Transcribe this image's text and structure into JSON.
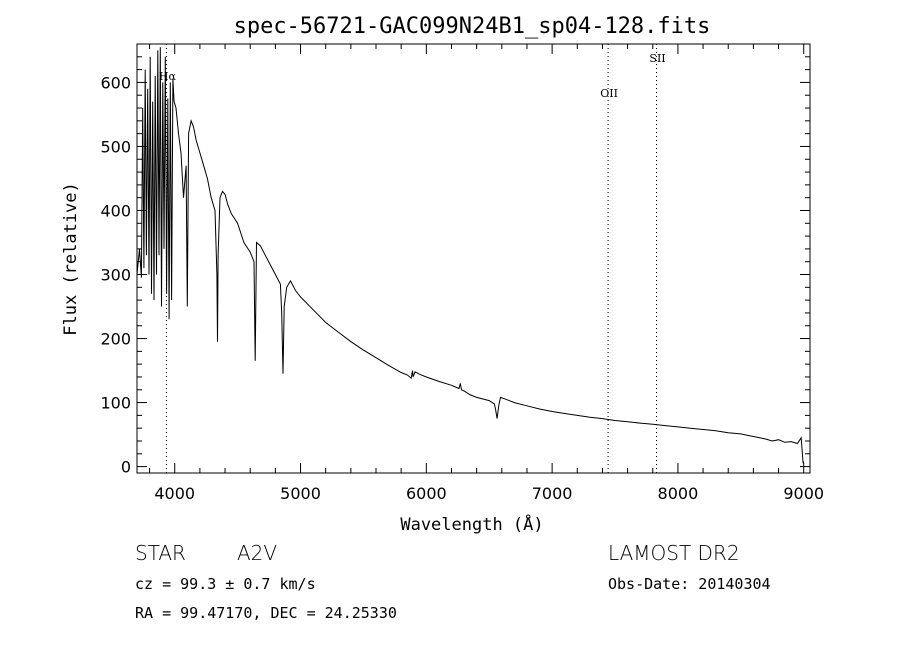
{
  "chart_data": {
    "type": "line",
    "title": "spec-56721-GAC099N24B1_sp04-128.fits",
    "xlabel": "Wavelength (Å)",
    "ylabel": "Flux (relative)",
    "xlim": [
      3700,
      9050
    ],
    "ylim": [
      -10,
      660
    ],
    "xticks": [
      4000,
      5000,
      6000,
      7000,
      8000,
      9000
    ],
    "yticks": [
      0,
      100,
      200,
      300,
      400,
      500,
      600
    ],
    "grid": false,
    "series": [
      {
        "x": [
          3700,
          3720,
          3735,
          3745,
          3755,
          3765,
          3775,
          3785,
          3795,
          3805,
          3815,
          3825,
          3835,
          3845,
          3855,
          3865,
          3875,
          3885,
          3895,
          3905,
          3915,
          3925,
          3935,
          3945,
          3955,
          3965,
          3975,
          3985,
          3995,
          4010,
          4030,
          4050,
          4070,
          4090,
          4100,
          4110,
          4130,
          4150,
          4170,
          4200,
          4230,
          4260,
          4290,
          4320,
          4335,
          4340,
          4345,
          4360,
          4380,
          4400,
          4420,
          4450,
          4500,
          4550,
          4600,
          4630,
          4640,
          4650,
          4680,
          4720,
          4760,
          4800,
          4840,
          4850,
          4861,
          4870,
          4890,
          4920,
          4960,
          5000,
          5100,
          5200,
          5300,
          5400,
          5500,
          5600,
          5700,
          5800,
          5850,
          5880,
          5890,
          5895,
          5910,
          5950,
          6000,
          6100,
          6200,
          6260,
          6270,
          6280,
          6300,
          6350,
          6400,
          6500,
          6540,
          6550,
          6563,
          6575,
          6590,
          6620,
          6700,
          6800,
          6900,
          7000,
          7100,
          7200,
          7300,
          7400,
          7500,
          7600,
          7700,
          7800,
          7900,
          8000,
          8100,
          8200,
          8300,
          8400,
          8500,
          8550,
          8600,
          8650,
          8700,
          8750,
          8800,
          8850,
          8900,
          8950,
          8980,
          8995,
          9000
        ],
        "y": [
          300,
          340,
          295,
          560,
          310,
          620,
          330,
          590,
          300,
          640,
          270,
          570,
          260,
          610,
          300,
          650,
          330,
          655,
          250,
          600,
          340,
          640,
          270,
          575,
          230,
          600,
          260,
          605,
          570,
          560,
          520,
          490,
          420,
          470,
          250,
          520,
          540,
          530,
          510,
          490,
          470,
          450,
          420,
          400,
          300,
          195,
          330,
          420,
          430,
          425,
          410,
          395,
          380,
          350,
          335,
          320,
          165,
          350,
          345,
          330,
          315,
          300,
          285,
          240,
          145,
          250,
          280,
          290,
          275,
          265,
          245,
          225,
          210,
          195,
          182,
          170,
          158,
          147,
          143,
          138,
          150,
          140,
          148,
          144,
          140,
          133,
          127,
          122,
          130,
          120,
          118,
          112,
          108,
          103,
          98,
          90,
          75,
          95,
          108,
          106,
          100,
          95,
          90,
          86,
          83,
          80,
          77,
          75,
          72,
          70,
          68,
          66,
          64,
          62,
          60,
          58,
          56,
          53,
          51,
          49,
          47,
          45,
          43,
          40,
          42,
          38,
          39,
          36,
          45,
          5,
          8
        ]
      }
    ],
    "annotations": [
      {
        "label": "Hα",
        "x": 3934
      },
      {
        "label": "OII",
        "x": 7445
      },
      {
        "label": "SII",
        "x": 7830
      }
    ]
  },
  "info": {
    "object_type": "STAR",
    "subclass": "A2V",
    "survey": "LAMOST DR2",
    "redshift_text": "cz = 99.3 ± 0.7 km/s",
    "obs_date": "Obs-Date: 20140304",
    "coords": "RA =  99.47170, DEC =  24.25330"
  }
}
